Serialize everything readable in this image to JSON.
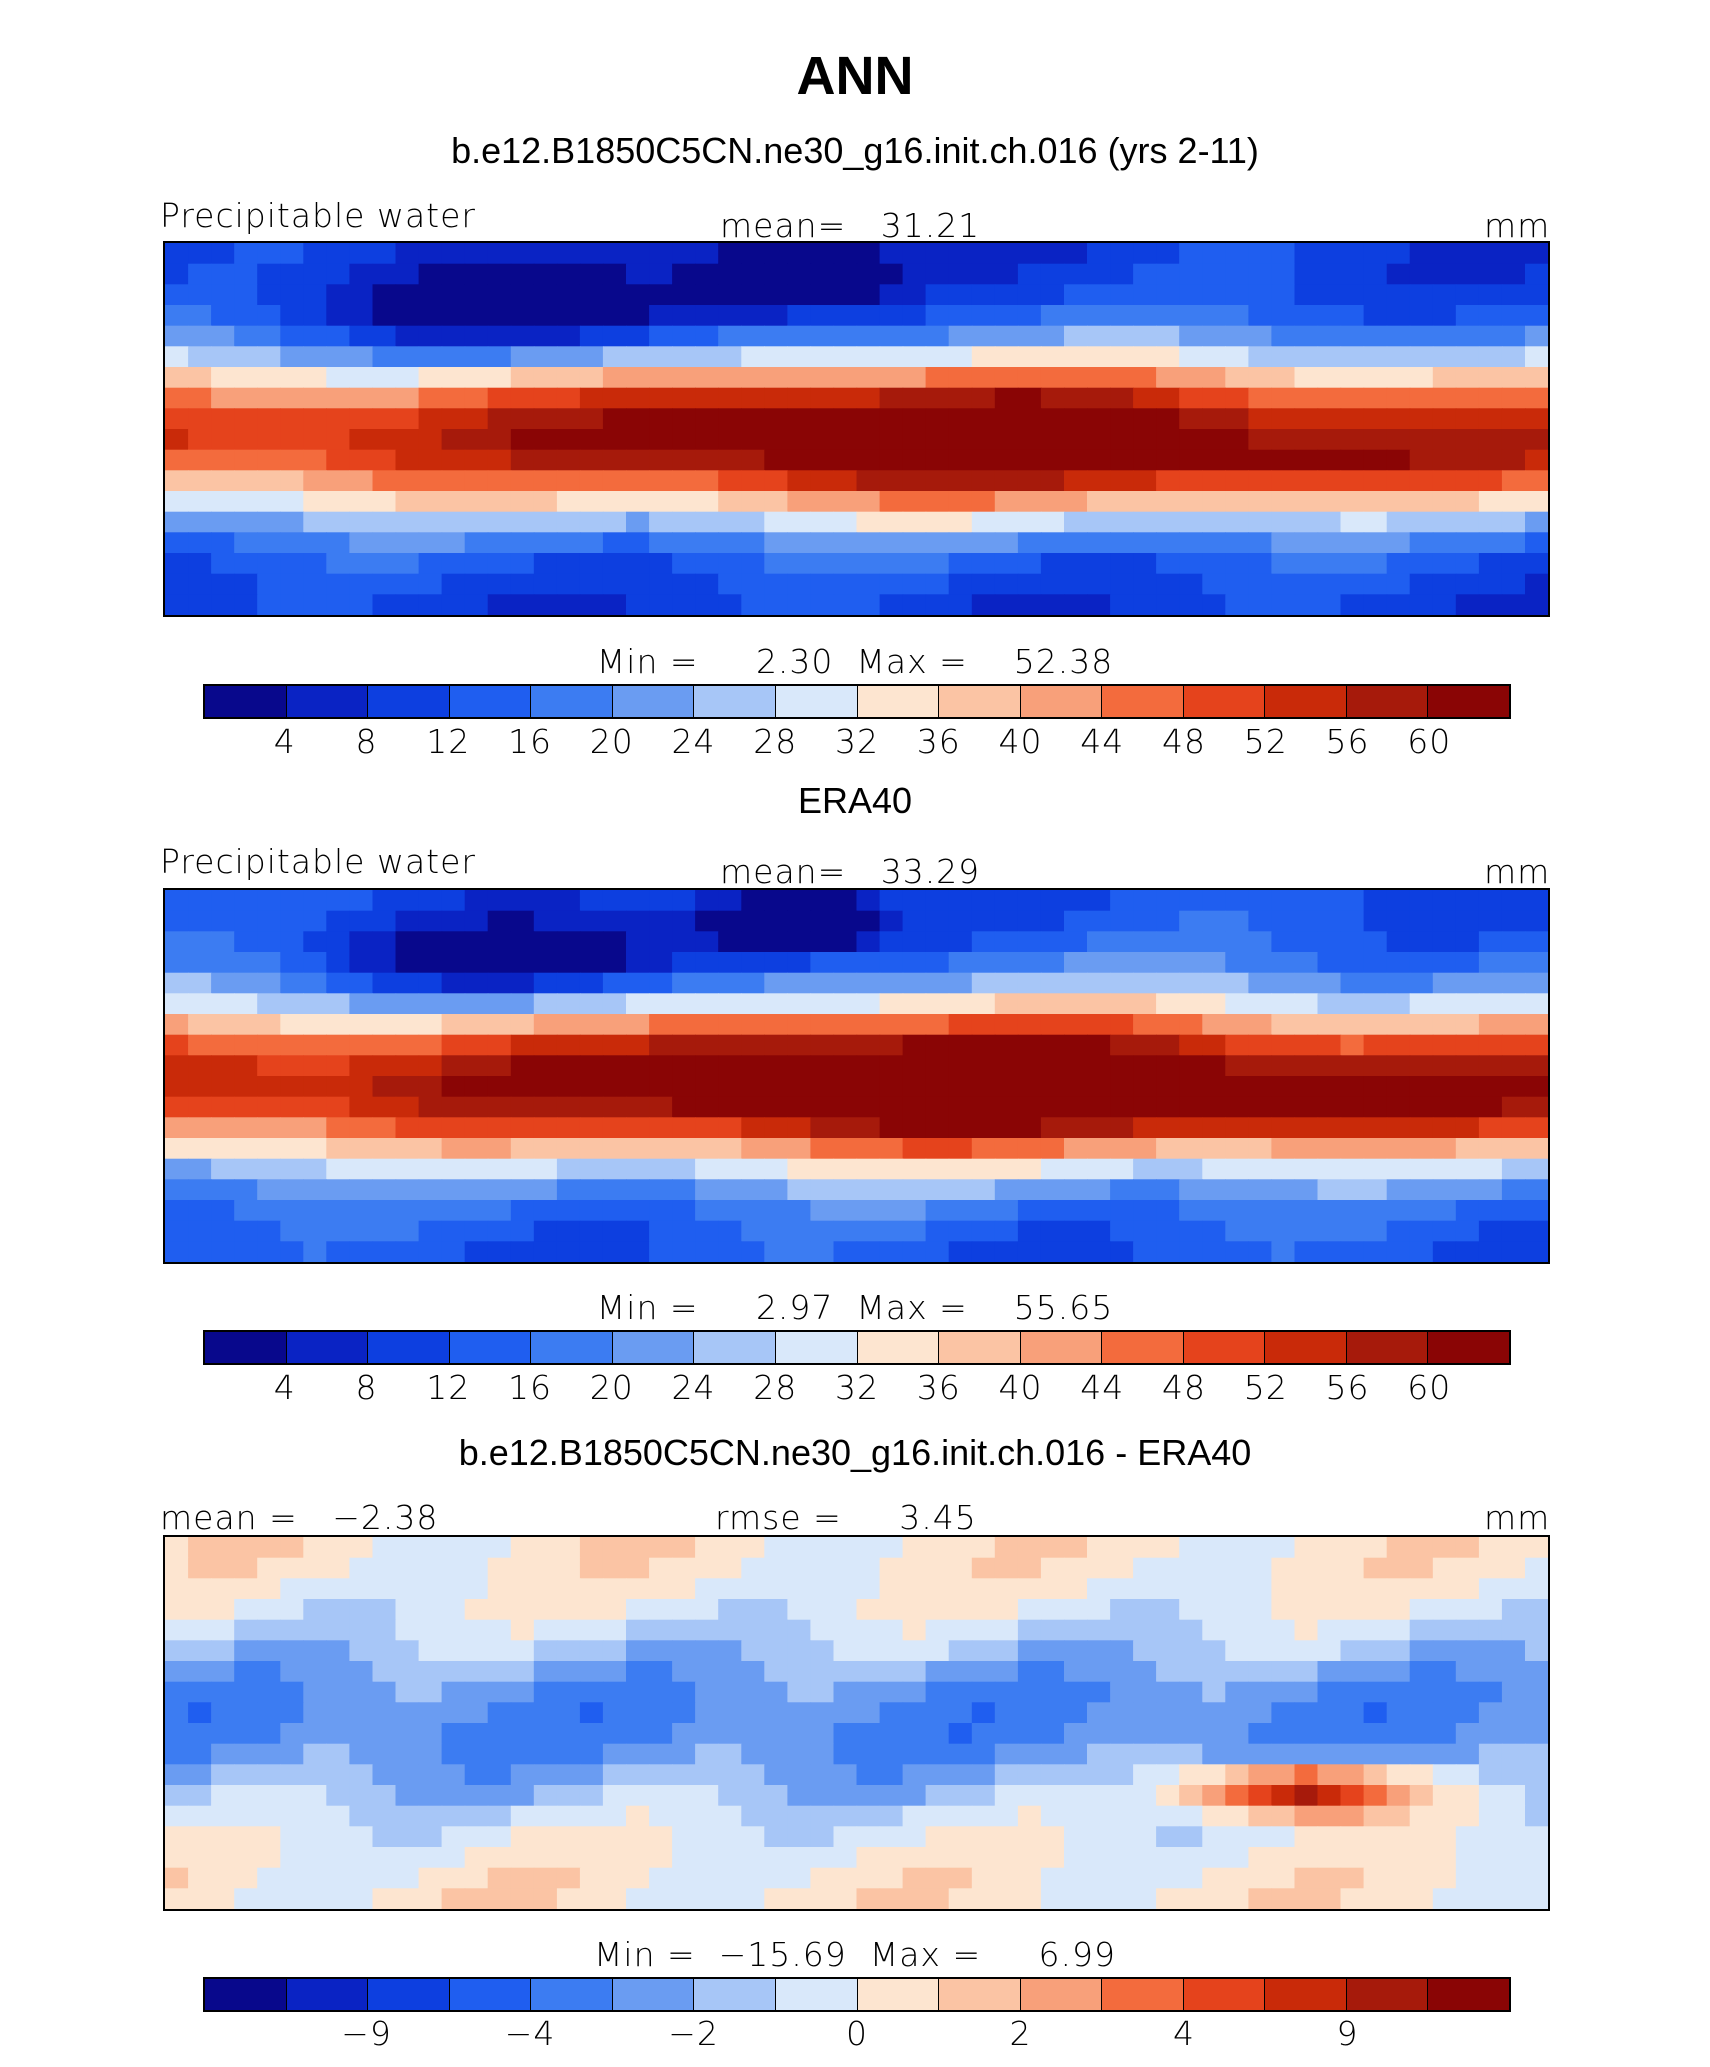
{
  "figure": {
    "title": "ANN",
    "colors": [
      "#08088c",
      "#0a23c4",
      "#0d3fe0",
      "#1f5ef0",
      "#3c7cf2",
      "#6a9cf2",
      "#a7c6f7",
      "#d9e8fa",
      "#fde5d0",
      "#fbc4a4",
      "#f8a07a",
      "#f36b3d",
      "#e5431c",
      "#c92a09",
      "#a61a0b",
      "#8a0505"
    ]
  },
  "chart_data": [
    {
      "type": "heatmap",
      "title": "b.e12.B1850C5CN.ne30_g16.init.ch.016 (yrs 2-11)",
      "left_label": "Precipitable water",
      "center_label": "mean=   31.21",
      "units": "mm",
      "minmax": "Min =     2.30  Max =    52.38",
      "min": 2.3,
      "max": 52.38,
      "mean": 31.21,
      "colorbar_ticks": [
        "4",
        "8",
        "12",
        "16",
        "20",
        "24",
        "28",
        "32",
        "36",
        "40",
        "44",
        "48",
        "52",
        "56",
        "60"
      ]
    },
    {
      "type": "heatmap",
      "title": "ERA40",
      "left_label": "Precipitable water",
      "center_label": "mean=   33.29",
      "units": "mm",
      "minmax": "Min =     2.97  Max =    55.65",
      "min": 2.97,
      "max": 55.65,
      "mean": 33.29,
      "colorbar_ticks": [
        "4",
        "8",
        "12",
        "16",
        "20",
        "24",
        "28",
        "32",
        "36",
        "40",
        "44",
        "48",
        "52",
        "56",
        "60"
      ]
    },
    {
      "type": "heatmap",
      "title": "b.e12.B1850C5CN.ne30_g16.init.ch.016 - ERA40",
      "left_label": "mean =   −2.38",
      "center_label": "rmse =     3.45",
      "units": "mm",
      "minmax": "Min =  −15.69  Max =     6.99",
      "min": -15.69,
      "max": 6.99,
      "mean": -2.38,
      "rmse": 3.45,
      "colorbar_ticks": [
        "−9",
        "−4",
        "−2",
        "0",
        "2",
        "4",
        "9"
      ]
    }
  ]
}
